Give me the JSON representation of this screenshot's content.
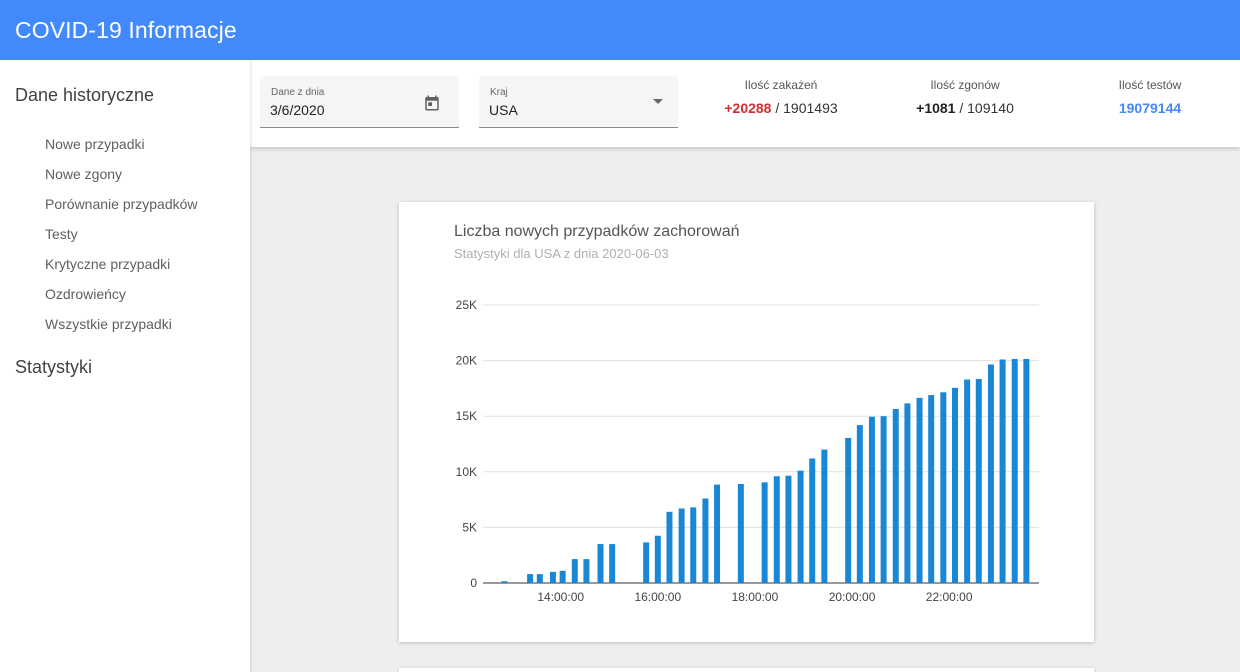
{
  "appbar": {
    "title": "COVID-19 Informacje"
  },
  "sidebar": {
    "section_historical": "Dane historyczne",
    "items": [
      {
        "label": "Nowe przypadki"
      },
      {
        "label": "Nowe zgony"
      },
      {
        "label": "Porównanie przypadków"
      },
      {
        "label": "Testy"
      },
      {
        "label": "Krytyczne przypadki"
      },
      {
        "label": "Ozdrowieńcy"
      },
      {
        "label": "Wszystkie przypadki"
      }
    ],
    "section_stats": "Statystyki"
  },
  "filters": {
    "date_label": "Dane z dnia",
    "date_value": "3/6/2020",
    "country_label": "Kraj",
    "country_value": "USA"
  },
  "stats": {
    "cases_label": "Ilość zakażeń",
    "cases_delta": "+20288",
    "cases_total": "1901493",
    "deaths_label": "Ilość zgonów",
    "deaths_delta": "+1081",
    "deaths_total": "109140",
    "tests_label": "Ilość testów",
    "tests_total": "19079144",
    "separator": "/",
    "colors": {
      "cases_delta": "#d32f2f",
      "tests": "#4289fc"
    }
  },
  "chart": {
    "title": "Liczba nowych przypadków zachorowań",
    "subtitle": "Statystyki dla USA z dnia 2020-06-03"
  },
  "chart_data": {
    "type": "bar",
    "title": "Liczba nowych przypadków zachorowań",
    "subtitle": "Statystyki dla USA z dnia 2020-06-03",
    "xlabel": "",
    "ylabel": "",
    "ylim": [
      0,
      25000
    ],
    "y_ticks": [
      "0",
      "5K",
      "10K",
      "15K",
      "20K",
      "25K"
    ],
    "x_ticks": [
      "14:00:00",
      "16:00:00",
      "18:00:00",
      "20:00:00",
      "22:00:00"
    ],
    "x_range_hours": [
      12.4,
      23.85
    ],
    "grid": true,
    "bar_color": "#1a87d4",
    "points": [
      {
        "t": 12.84,
        "v": 160
      },
      {
        "t": 13.37,
        "v": 800
      },
      {
        "t": 13.57,
        "v": 800
      },
      {
        "t": 13.84,
        "v": 1000
      },
      {
        "t": 14.04,
        "v": 1100
      },
      {
        "t": 14.29,
        "v": 2150
      },
      {
        "t": 14.53,
        "v": 2150
      },
      {
        "t": 14.82,
        "v": 3500
      },
      {
        "t": 15.06,
        "v": 3500
      },
      {
        "t": 15.76,
        "v": 3650
      },
      {
        "t": 16.0,
        "v": 4250
      },
      {
        "t": 16.24,
        "v": 6400
      },
      {
        "t": 16.49,
        "v": 6700
      },
      {
        "t": 16.73,
        "v": 6800
      },
      {
        "t": 16.98,
        "v": 7600
      },
      {
        "t": 17.22,
        "v": 8850
      },
      {
        "t": 17.71,
        "v": 8900
      },
      {
        "t": 18.2,
        "v": 9050
      },
      {
        "t": 18.45,
        "v": 9600
      },
      {
        "t": 18.69,
        "v": 9650
      },
      {
        "t": 18.94,
        "v": 10100
      },
      {
        "t": 19.18,
        "v": 11200
      },
      {
        "t": 19.43,
        "v": 12000
      },
      {
        "t": 19.92,
        "v": 13050
      },
      {
        "t": 20.16,
        "v": 14200
      },
      {
        "t": 20.41,
        "v": 14950
      },
      {
        "t": 20.65,
        "v": 15000
      },
      {
        "t": 20.9,
        "v": 15650
      },
      {
        "t": 21.14,
        "v": 16150
      },
      {
        "t": 21.39,
        "v": 16650
      },
      {
        "t": 21.63,
        "v": 16900
      },
      {
        "t": 21.88,
        "v": 17150
      },
      {
        "t": 22.12,
        "v": 17550
      },
      {
        "t": 22.37,
        "v": 18300
      },
      {
        "t": 22.61,
        "v": 18350
      },
      {
        "t": 22.86,
        "v": 19650
      },
      {
        "t": 23.1,
        "v": 20100
      },
      {
        "t": 23.35,
        "v": 20150
      },
      {
        "t": 23.59,
        "v": 20150
      }
    ]
  }
}
